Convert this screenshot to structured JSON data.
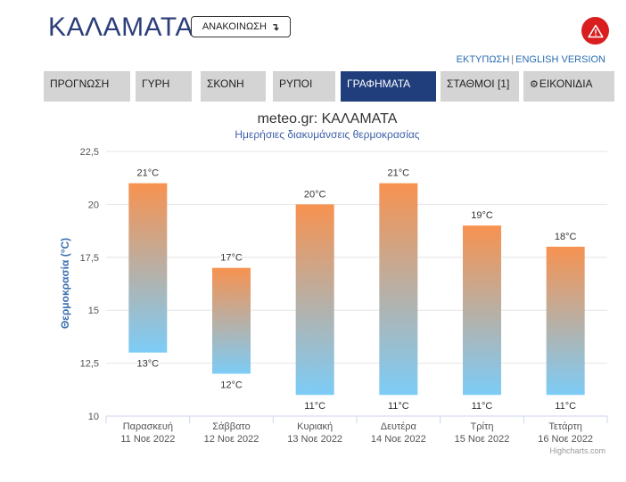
{
  "header": {
    "city": "ΚΑΛΑΜΑΤΑ",
    "announcement_label": "ΑΝΑΚΟΙΝΩΣΗ",
    "announcement_arrow": "↴",
    "alert_icon": "warning-triangle-icon"
  },
  "links": {
    "print": "ΕΚΤΥΠΩΣΗ",
    "separator": "|",
    "english": "ENGLISH VERSION"
  },
  "tabs": [
    {
      "label": "ΠΡΟΓΝΩΣΗ",
      "active": false
    },
    {
      "label": "ΓΥΡΗ",
      "active": false
    },
    {
      "label": "ΣΚΟΝΗ",
      "active": false
    },
    {
      "label": "ΡΥΠΟΙ",
      "active": false
    },
    {
      "label": "ΓΡΑΦΗΜΑΤΑ",
      "active": true
    },
    {
      "label": "ΣΤΑΘΜΟΙ [1]",
      "active": false
    },
    {
      "label": "ΕΙΚΟΝΙΔΙΑ",
      "active": false
    }
  ],
  "colors": {
    "accent": "#203d7c",
    "bar_top": "#f79250",
    "bar_bottom": "#7cccf7",
    "title": "#333333",
    "subtitle": "#3d5fa8",
    "alert": "#d81e1e"
  },
  "chart_data": {
    "type": "columnrange",
    "title": "meteo.gr: ΚΑΛΑΜΑΤΑ",
    "subtitle": "Ημερήσιες διακυμάνσεις θερμοκρασίας",
    "ylabel": "Θερμοκρασία (°C)",
    "ylim": [
      10,
      22.5
    ],
    "yticks": [
      "10",
      "12,5",
      "15",
      "17,5",
      "20",
      "22,5"
    ],
    "ytick_values": [
      10,
      12.5,
      15,
      17.5,
      20,
      22.5
    ],
    "grid": true,
    "categories": [
      {
        "day": "Παρασκευή",
        "date": "11 Νοε 2022"
      },
      {
        "day": "Σάββατο",
        "date": "12 Νοε 2022"
      },
      {
        "day": "Κυριακή",
        "date": "13 Νοε 2022"
      },
      {
        "day": "Δευτέρα",
        "date": "14 Νοε 2022"
      },
      {
        "day": "Τρίτη",
        "date": "15 Νοε 2022"
      },
      {
        "day": "Τετάρτη",
        "date": "16 Νοε 2022"
      }
    ],
    "series": [
      {
        "low": [
          13,
          12,
          11,
          11,
          11,
          11
        ],
        "high": [
          21,
          17,
          20,
          21,
          19,
          18
        ]
      }
    ],
    "unit_suffix": "°C",
    "credits": "Highcharts.com"
  }
}
